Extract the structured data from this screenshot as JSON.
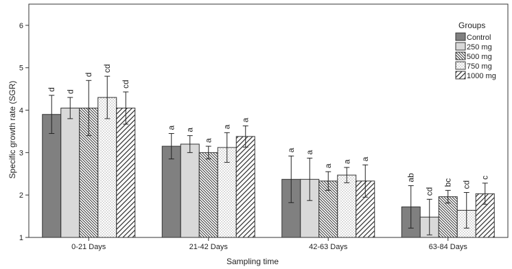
{
  "chart_data": {
    "type": "bar",
    "xlabel": "Sampling time",
    "ylabel": "Specific growth rate (SGR)",
    "ylim": [
      1,
      6.5
    ],
    "yticks": [
      1,
      2,
      3,
      4,
      5,
      6
    ],
    "grid": false,
    "legend": {
      "title": "Groups",
      "placement": "top-right"
    },
    "categories": [
      "0-21 Days",
      "21-42 Days",
      "42-63 Days",
      "63-84 Days"
    ],
    "series": [
      {
        "name": "Control",
        "fill": "solid-dark",
        "color": "#808080",
        "values": [
          3.9,
          3.15,
          2.37,
          1.72
        ],
        "errors": [
          0.45,
          0.3,
          0.55,
          0.5
        ],
        "letters": [
          "d",
          "a",
          "a",
          "ab"
        ]
      },
      {
        "name": "250 mg",
        "fill": "solid-light",
        "color": "#d9d9d9",
        "values": [
          4.05,
          3.2,
          2.37,
          1.48
        ],
        "errors": [
          0.25,
          0.2,
          0.5,
          0.42
        ],
        "letters": [
          "d",
          "a",
          "a",
          "cd"
        ]
      },
      {
        "name": "500 mg",
        "fill": "dense-diagonal",
        "color": "#ffffff",
        "values": [
          4.05,
          3.0,
          2.33,
          1.96
        ],
        "errors": [
          0.65,
          0.15,
          0.22,
          0.15
        ],
        "letters": [
          "d",
          "a",
          "a",
          "bc"
        ]
      },
      {
        "name": "750 mg",
        "fill": "dotted",
        "color": "#ffffff",
        "values": [
          4.3,
          3.12,
          2.47,
          1.64
        ],
        "errors": [
          0.5,
          0.35,
          0.18,
          0.42
        ],
        "letters": [
          "cd",
          "a",
          "a",
          "cd"
        ]
      },
      {
        "name": "1000 mg",
        "fill": "wide-diagonal",
        "color": "#ffffff",
        "values": [
          4.05,
          3.38,
          2.33,
          2.03
        ],
        "errors": [
          0.38,
          0.25,
          0.38,
          0.25
        ],
        "letters": [
          "cd",
          "a",
          "a",
          "c"
        ]
      }
    ]
  }
}
